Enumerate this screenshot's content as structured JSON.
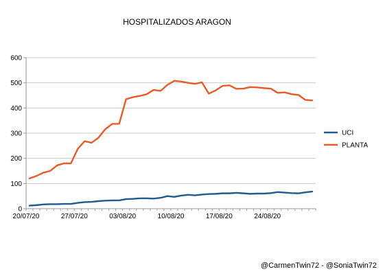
{
  "chart_data": {
    "type": "line",
    "title": "HOSPITALIZADOS ARAGON",
    "xlabel": "",
    "ylabel": "",
    "ylim": [
      0,
      600
    ],
    "yticks": [
      0,
      100,
      200,
      300,
      400,
      500,
      600
    ],
    "xtick_labels": [
      "20/07/20",
      "27/07/20",
      "03/08/20",
      "10/08/20",
      "17/08/20",
      "24/08/20"
    ],
    "grid": true,
    "legend_position": "right",
    "x": [
      "20/07/20",
      "21/07/20",
      "22/07/20",
      "23/07/20",
      "24/07/20",
      "25/07/20",
      "26/07/20",
      "27/07/20",
      "28/07/20",
      "29/07/20",
      "30/07/20",
      "31/07/20",
      "01/08/20",
      "02/08/20",
      "03/08/20",
      "04/08/20",
      "05/08/20",
      "06/08/20",
      "07/08/20",
      "08/08/20",
      "09/08/20",
      "10/08/20",
      "11/08/20",
      "12/08/20",
      "13/08/20",
      "14/08/20",
      "15/08/20",
      "16/08/20",
      "17/08/20",
      "18/08/20",
      "19/08/20",
      "20/08/20",
      "21/08/20",
      "22/08/20",
      "23/08/20",
      "24/08/20",
      "25/08/20",
      "26/08/20",
      "27/08/20",
      "28/08/20",
      "29/08/20",
      "30/08/20"
    ],
    "series": [
      {
        "name": "UCI",
        "color": "#1f5b8e",
        "values": [
          12,
          14,
          17,
          18,
          18,
          19,
          19,
          23,
          26,
          27,
          30,
          32,
          33,
          33,
          38,
          39,
          41,
          41,
          40,
          43,
          50,
          47,
          52,
          55,
          53,
          56,
          58,
          59,
          61,
          61,
          63,
          61,
          59,
          60,
          60,
          62,
          66,
          64,
          62,
          61,
          65,
          68
        ]
      },
      {
        "name": "PLANTA",
        "color": "#e85a26",
        "values": [
          120,
          130,
          143,
          150,
          172,
          180,
          180,
          238,
          268,
          262,
          282,
          316,
          337,
          337,
          435,
          443,
          448,
          455,
          472,
          468,
          492,
          508,
          505,
          500,
          496,
          502,
          457,
          470,
          488,
          490,
          476,
          477,
          483,
          482,
          479,
          477,
          460,
          462,
          455,
          452,
          432,
          430
        ]
      }
    ]
  },
  "credit": "@CarmenTwin72 - @SoniaTwin72"
}
